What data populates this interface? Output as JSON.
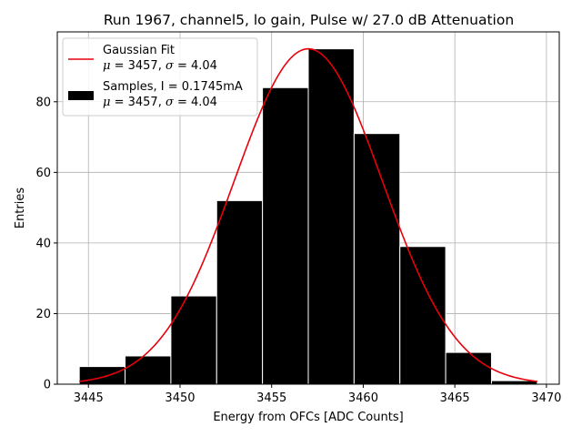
{
  "chart_data": {
    "type": "bar",
    "title": "Run 1967, channel5, lo gain, Pulse w/ 27.0 dB Attenuation",
    "xlabel": "Energy from OFCs [ADC Counts]",
    "ylabel": "Entries",
    "xlim": [
      3443.3,
      3470.7
    ],
    "ylim": [
      0,
      99.8
    ],
    "xticks": [
      3445,
      3450,
      3455,
      3460,
      3465,
      3470
    ],
    "yticks": [
      0,
      20,
      40,
      60,
      80
    ],
    "grid": true,
    "legend_position": "upper-left",
    "bar_color": "#000000",
    "fit_color": "#e8000b",
    "bins": [
      {
        "x0": 3444.5,
        "x1": 3447.0,
        "value": 5
      },
      {
        "x0": 3447.0,
        "x1": 3449.5,
        "value": 8
      },
      {
        "x0": 3449.5,
        "x1": 3452.0,
        "value": 25
      },
      {
        "x0": 3452.0,
        "x1": 3454.5,
        "value": 52
      },
      {
        "x0": 3454.5,
        "x1": 3457.0,
        "value": 84
      },
      {
        "x0": 3457.0,
        "x1": 3459.5,
        "value": 95
      },
      {
        "x0": 3459.5,
        "x1": 3462.0,
        "value": 71
      },
      {
        "x0": 3462.0,
        "x1": 3464.5,
        "value": 39
      },
      {
        "x0": 3464.5,
        "x1": 3467.0,
        "value": 9
      },
      {
        "x0": 3467.0,
        "x1": 3469.5,
        "value": 1
      }
    ],
    "fit": {
      "type": "gaussian",
      "mu": 3457.0,
      "sigma": 4.04,
      "amplitude": 95,
      "x_range": [
        3444.5,
        3469.5
      ]
    },
    "legend": [
      {
        "kind": "line",
        "line1": "Gaussian Fit",
        "mu_label": "μ",
        "mu_value": " = 3457, ",
        "sigma_label": "σ",
        "sigma_value": " = 4.04"
      },
      {
        "kind": "patch",
        "line1": "Samples, I = 0.1745mA",
        "mu_label": "μ",
        "mu_value": " = 3457, ",
        "sigma_label": "σ",
        "sigma_value": " = 4.04"
      }
    ]
  }
}
